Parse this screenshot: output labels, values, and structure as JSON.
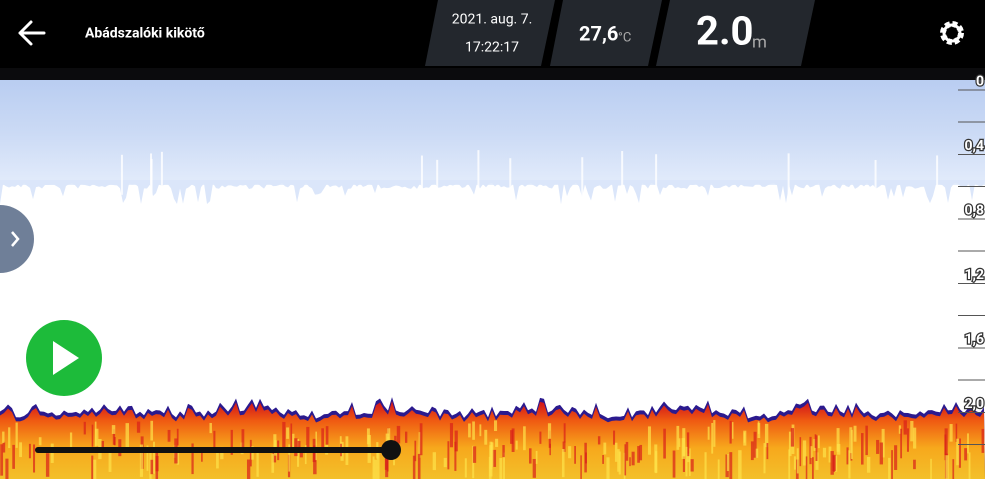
{
  "header": {
    "title": "Abádszalóki kikötő",
    "date": "2021. aug. 7.",
    "time": "17:22:17",
    "temperature": "27,6",
    "temperature_unit": "°C",
    "depth": "2.0",
    "depth_unit": "m"
  },
  "depth_scale": [
    "0",
    "0,4",
    "0,8",
    "1,2",
    "1,6",
    "2,0"
  ]
}
